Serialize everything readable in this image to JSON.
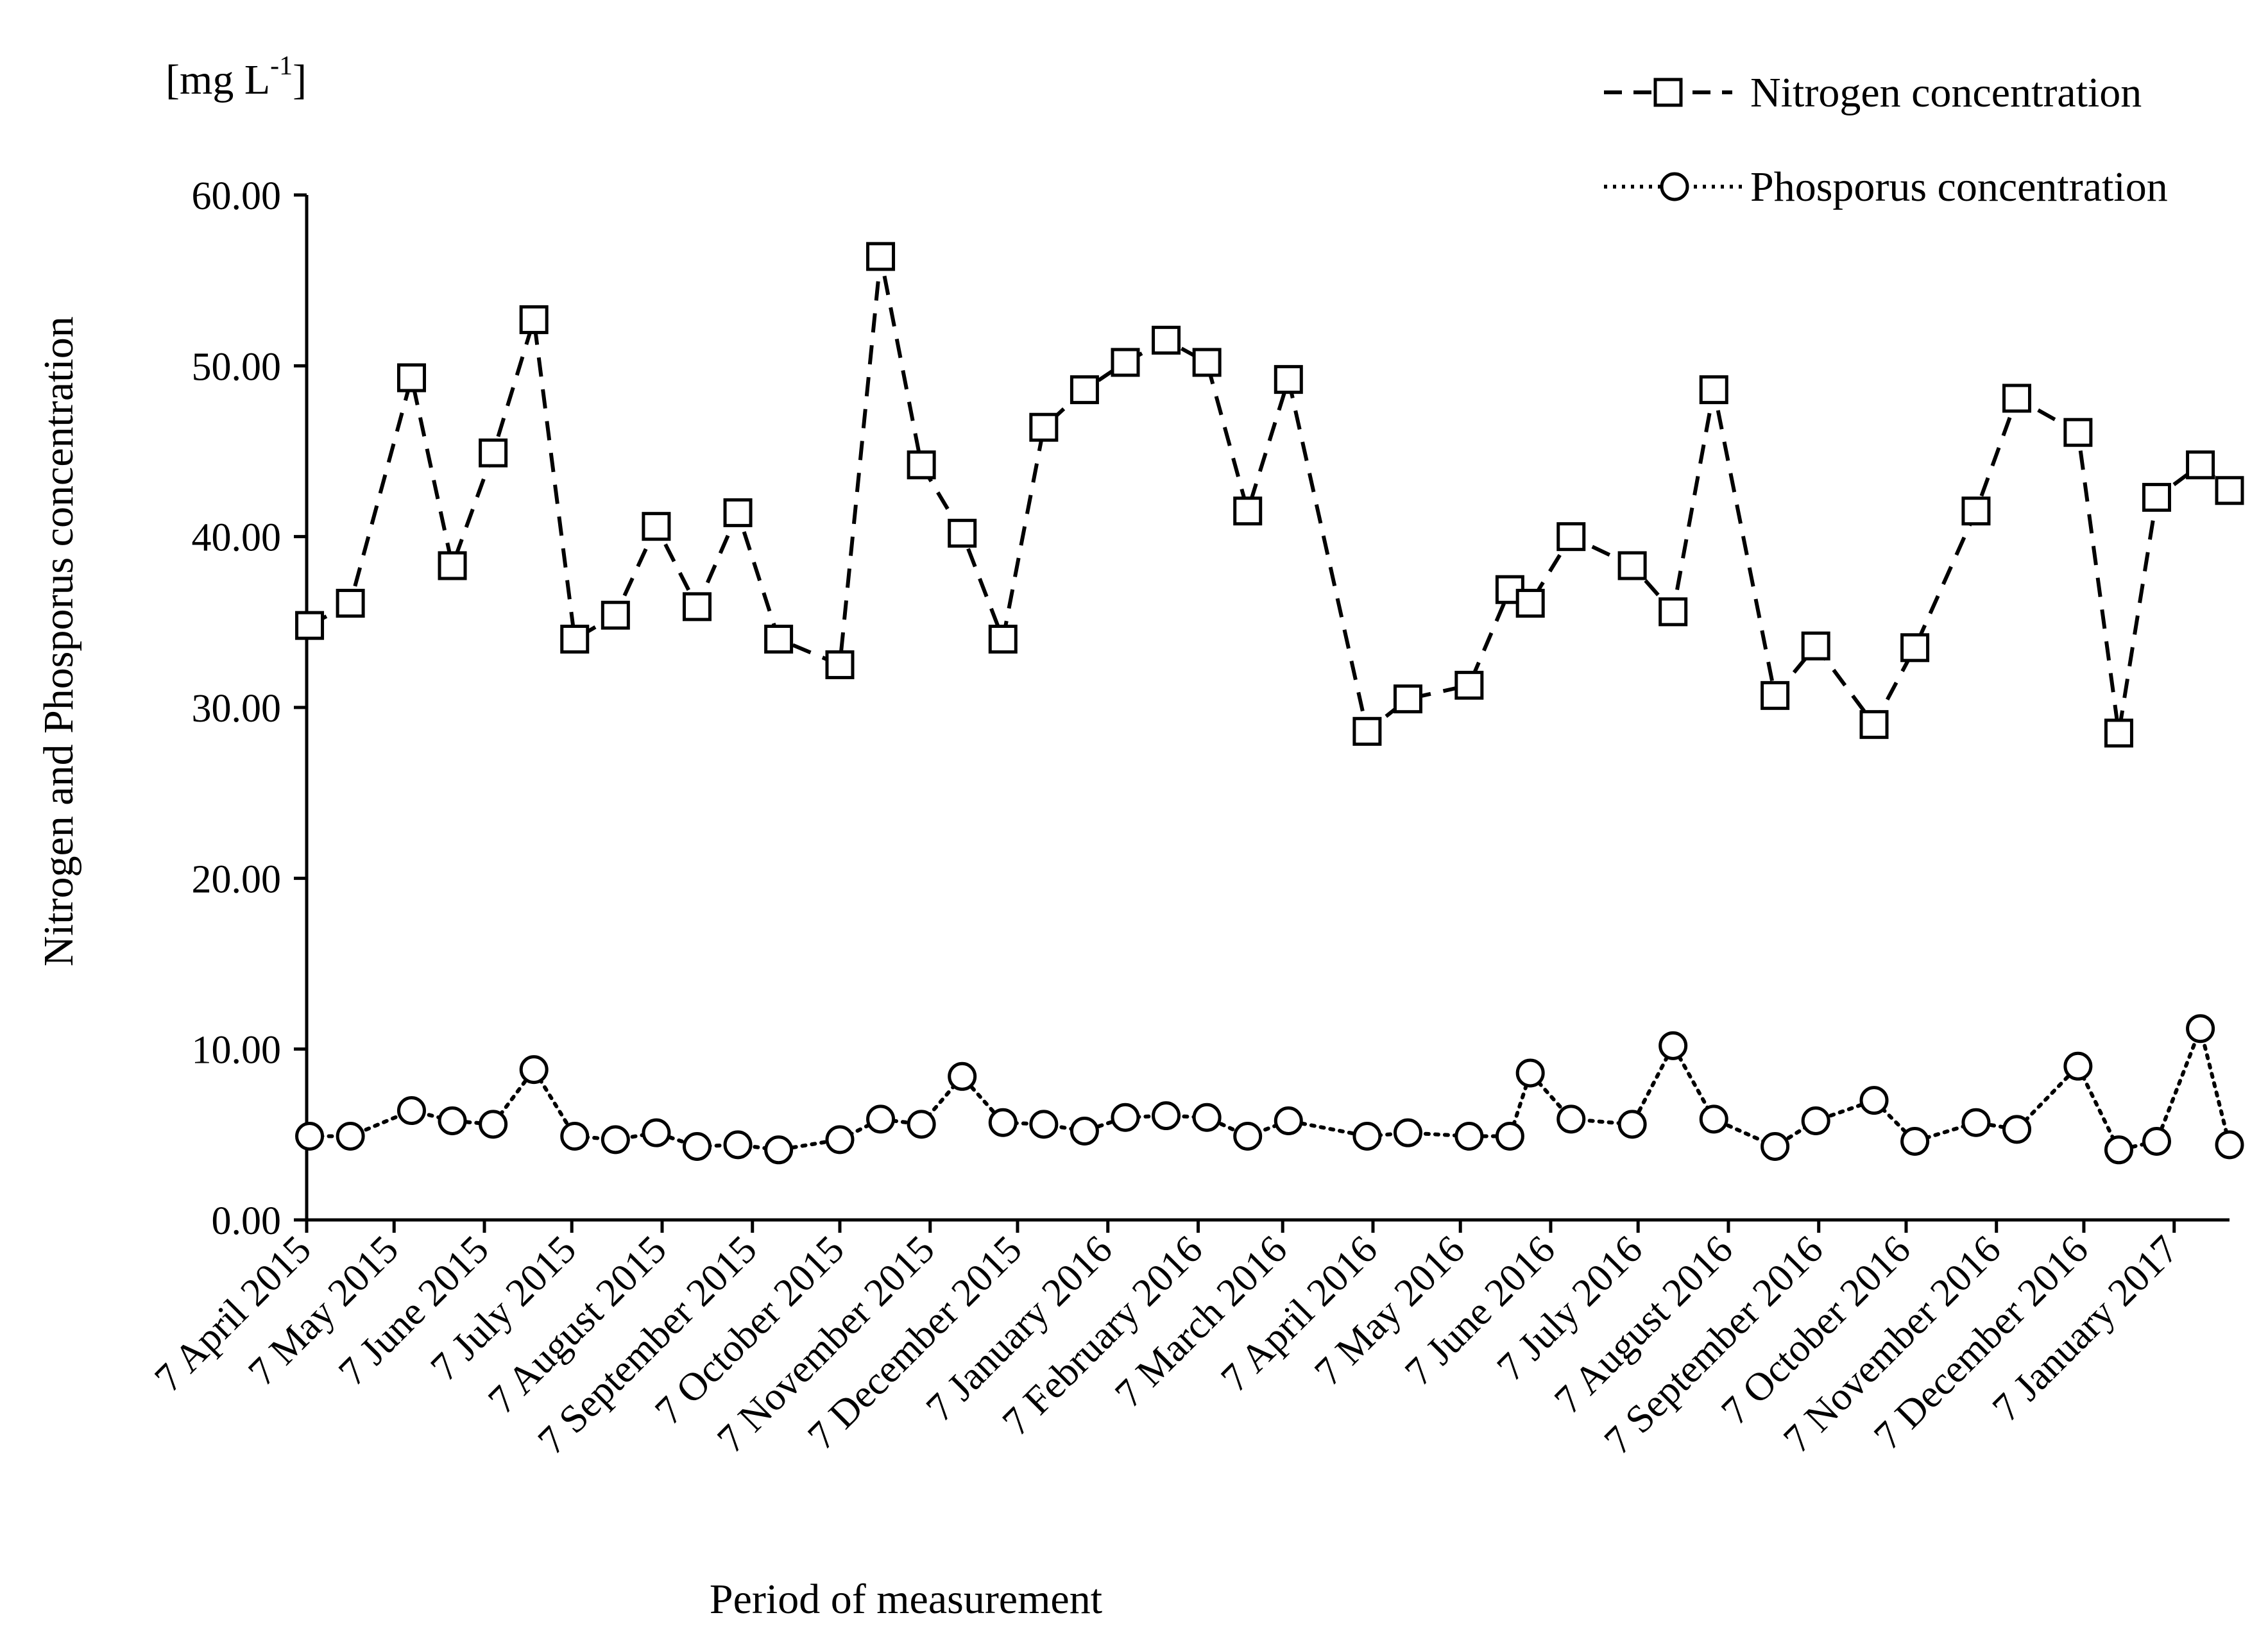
{
  "chart_data": {
    "type": "line",
    "unit_label": "[mg L-1]",
    "unit_label_main": "[mg L",
    "unit_label_sup": "-1",
    "unit_label_close": "]",
    "ylabel": "Nitrogen and Phosporus concentration",
    "xlabel": "Period of measurement",
    "ylim": [
      0,
      60
    ],
    "yticks": [
      "0.00",
      "10.00",
      "20.00",
      "30.00",
      "40.00",
      "50.00",
      "60.00"
    ],
    "date_range_days": [
      0,
      660
    ],
    "x_tick_labels": [
      {
        "label": "7 April 2015",
        "day": 0
      },
      {
        "label": "7 May 2015",
        "day": 30
      },
      {
        "label": "7 June 2015",
        "day": 61
      },
      {
        "label": "7 July 2015",
        "day": 91
      },
      {
        "label": "7 August 2015",
        "day": 122
      },
      {
        "label": "7 September 2015",
        "day": 153
      },
      {
        "label": "7 October 2015",
        "day": 183
      },
      {
        "label": "7 November 2015",
        "day": 214
      },
      {
        "label": "7 December 2015",
        "day": 244
      },
      {
        "label": "7 January 2016",
        "day": 275
      },
      {
        "label": "7 February 2016",
        "day": 306
      },
      {
        "label": "7 March 2016",
        "day": 335
      },
      {
        "label": "7 April 2016",
        "day": 366
      },
      {
        "label": "7 May 2016",
        "day": 396
      },
      {
        "label": "7 June 2016",
        "day": 427
      },
      {
        "label": "7 July 2016",
        "day": 457
      },
      {
        "label": "7 August 2016",
        "day": 488
      },
      {
        "label": "7 September 2016",
        "day": 519
      },
      {
        "label": "7 October 2016",
        "day": 549
      },
      {
        "label": "7 November 2016",
        "day": 580
      },
      {
        "label": "7 December 2016",
        "day": 610
      },
      {
        "label": "7 January 2017",
        "day": 641
      }
    ],
    "x_days": [
      1,
      15,
      36,
      50,
      64,
      78,
      92,
      106,
      120,
      134,
      148,
      162,
      183,
      197,
      211,
      225,
      239,
      253,
      267,
      281,
      295,
      309,
      323,
      337,
      364,
      378,
      399,
      413,
      420,
      434,
      455,
      469,
      483,
      504,
      518,
      538,
      552,
      573,
      587,
      608,
      622,
      635,
      650,
      660
    ],
    "series": [
      {
        "name": "Nitrogen concentration",
        "marker": "square",
        "line": "dashed",
        "values": [
          34.8,
          36.1,
          49.3,
          38.3,
          44.9,
          52.7,
          34.0,
          35.4,
          40.6,
          35.9,
          41.4,
          34.0,
          32.5,
          56.4,
          44.2,
          40.2,
          34.0,
          46.4,
          48.6,
          50.2,
          51.5,
          50.2,
          41.5,
          49.2,
          28.6,
          30.5,
          31.3,
          36.9,
          36.1,
          40.0,
          38.3,
          35.6,
          48.6,
          30.7,
          33.6,
          29.0,
          33.5,
          41.5,
          48.1,
          46.1,
          28.5,
          42.3,
          44.2,
          42.7
        ]
      },
      {
        "name": "Phosporus concentration",
        "marker": "circle",
        "line": "dotted",
        "values": [
          4.9,
          4.9,
          6.4,
          5.8,
          5.6,
          8.8,
          4.9,
          4.7,
          5.1,
          4.3,
          4.4,
          4.1,
          4.7,
          5.9,
          5.6,
          8.4,
          5.7,
          5.6,
          5.2,
          6.0,
          6.1,
          6.0,
          4.9,
          5.8,
          4.9,
          5.1,
          4.9,
          4.9,
          8.6,
          5.9,
          5.6,
          10.2,
          5.9,
          4.3,
          5.8,
          7.0,
          4.6,
          5.7,
          5.3,
          9.0,
          4.1,
          4.6,
          11.2,
          4.4
        ]
      }
    ],
    "legend": {
      "position": "top-right",
      "entries": [
        "Nitrogen concentration",
        "Phosporus concentration"
      ]
    }
  }
}
